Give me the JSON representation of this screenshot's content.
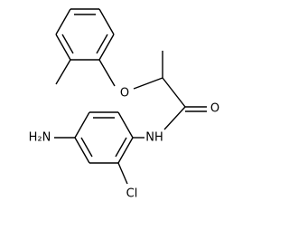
{
  "atoms": {
    "ether_oxygen": "O",
    "carbonyl_oxygen": "O",
    "amide_nitrogen": "NH",
    "amine": "H₂N",
    "chlorine": "Cl"
  }
}
